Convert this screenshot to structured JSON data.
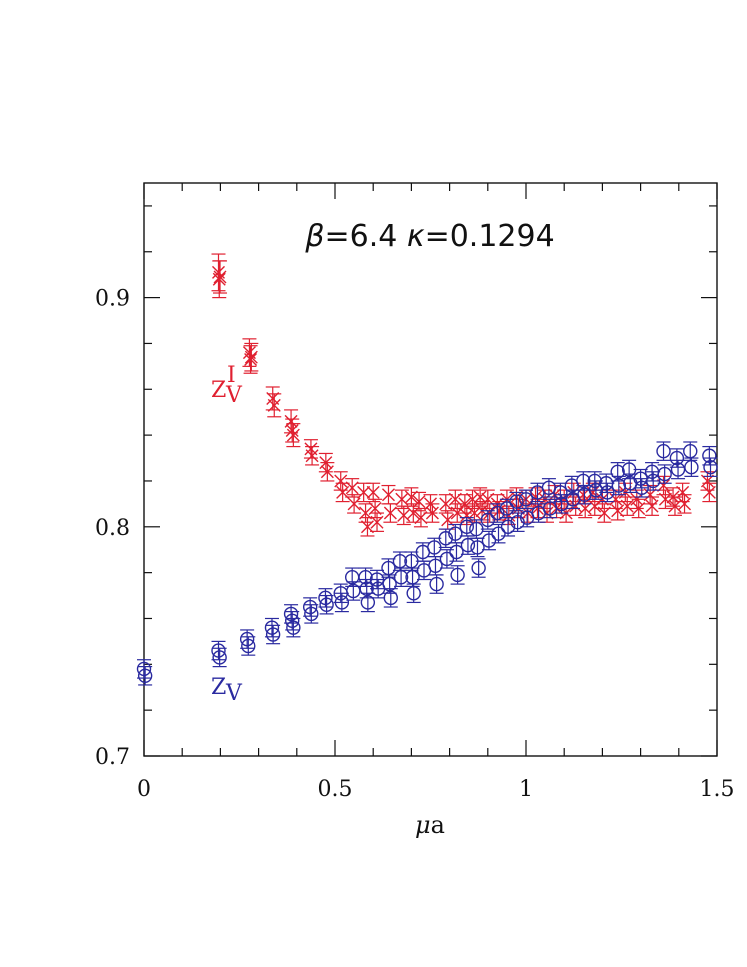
{
  "chart_data": {
    "type": "scatter",
    "title": "",
    "annotation_parts": [
      "β",
      "=6.4  ",
      "κ",
      "=0.1294"
    ],
    "xlabel_parts": [
      "μ",
      "a"
    ],
    "ylabel": "",
    "xlim": [
      0,
      1.5
    ],
    "ylim": [
      0.7,
      0.95
    ],
    "x_ticks": [
      0,
      0.5,
      1,
      1.5
    ],
    "x_tick_labels": [
      "0",
      "0.5",
      "1",
      "1.5"
    ],
    "y_ticks": [
      0.7,
      0.8,
      0.9
    ],
    "y_tick_labels": [
      "0.7",
      "0.8",
      "0.9"
    ],
    "grid": false,
    "series": [
      {
        "label_main": "Z",
        "label_sub": "V",
        "label_sup": "I",
        "color": "#e02030",
        "marker": "cross",
        "points": [
          [
            0.195,
            0.911,
            0.008
          ],
          [
            0.197,
            0.908,
            0.008
          ],
          [
            0.199,
            0.909,
            0.007
          ],
          [
            0.276,
            0.876,
            0.006
          ],
          [
            0.279,
            0.873,
            0.006
          ],
          [
            0.281,
            0.874,
            0.006
          ],
          [
            0.337,
            0.856,
            0.005
          ],
          [
            0.341,
            0.853,
            0.005
          ],
          [
            0.385,
            0.846,
            0.005
          ],
          [
            0.388,
            0.842,
            0.005
          ],
          [
            0.391,
            0.84,
            0.005
          ],
          [
            0.437,
            0.834,
            0.004
          ],
          [
            0.44,
            0.831,
            0.004
          ],
          [
            0.476,
            0.828,
            0.004
          ],
          [
            0.48,
            0.824,
            0.004
          ],
          [
            0.515,
            0.82,
            0.004
          ],
          [
            0.52,
            0.815,
            0.004
          ],
          [
            0.545,
            0.817,
            0.004
          ],
          [
            0.55,
            0.81,
            0.004
          ],
          [
            0.575,
            0.815,
            0.004
          ],
          [
            0.58,
            0.806,
            0.004
          ],
          [
            0.585,
            0.8,
            0.004
          ],
          [
            0.6,
            0.815,
            0.004
          ],
          [
            0.605,
            0.808,
            0.004
          ],
          [
            0.61,
            0.802,
            0.004
          ],
          [
            0.64,
            0.814,
            0.004
          ],
          [
            0.645,
            0.806,
            0.004
          ],
          [
            0.675,
            0.812,
            0.004
          ],
          [
            0.68,
            0.805,
            0.004
          ],
          [
            0.7,
            0.813,
            0.004
          ],
          [
            0.705,
            0.806,
            0.004
          ],
          [
            0.72,
            0.811,
            0.004
          ],
          [
            0.725,
            0.804,
            0.004
          ],
          [
            0.75,
            0.81,
            0.004
          ],
          [
            0.755,
            0.806,
            0.004
          ],
          [
            0.79,
            0.81,
            0.004
          ],
          [
            0.795,
            0.803,
            0.004
          ],
          [
            0.815,
            0.812,
            0.004
          ],
          [
            0.82,
            0.806,
            0.004
          ],
          [
            0.84,
            0.81,
            0.004
          ],
          [
            0.845,
            0.805,
            0.004
          ],
          [
            0.86,
            0.812,
            0.004
          ],
          [
            0.865,
            0.806,
            0.004
          ],
          [
            0.88,
            0.813,
            0.004
          ],
          [
            0.885,
            0.807,
            0.004
          ],
          [
            0.9,
            0.812,
            0.004
          ],
          [
            0.905,
            0.806,
            0.004
          ],
          [
            0.925,
            0.81,
            0.004
          ],
          [
            0.93,
            0.807,
            0.004
          ],
          [
            0.95,
            0.812,
            0.004
          ],
          [
            0.955,
            0.805,
            0.004
          ],
          [
            0.975,
            0.813,
            0.004
          ],
          [
            0.98,
            0.808,
            0.004
          ],
          [
            1.0,
            0.812,
            0.004
          ],
          [
            1.005,
            0.806,
            0.004
          ],
          [
            1.025,
            0.813,
            0.004
          ],
          [
            1.03,
            0.808,
            0.004
          ],
          [
            1.05,
            0.812,
            0.004
          ],
          [
            1.055,
            0.806,
            0.004
          ],
          [
            1.075,
            0.814,
            0.004
          ],
          [
            1.08,
            0.808,
            0.004
          ],
          [
            1.1,
            0.812,
            0.004
          ],
          [
            1.105,
            0.806,
            0.004
          ],
          [
            1.125,
            0.815,
            0.004
          ],
          [
            1.13,
            0.809,
            0.004
          ],
          [
            1.15,
            0.814,
            0.004
          ],
          [
            1.155,
            0.808,
            0.004
          ],
          [
            1.175,
            0.815,
            0.004
          ],
          [
            1.18,
            0.809,
            0.004
          ],
          [
            1.2,
            0.812,
            0.004
          ],
          [
            1.205,
            0.806,
            0.004
          ],
          [
            1.235,
            0.812,
            0.004
          ],
          [
            1.24,
            0.807,
            0.004
          ],
          [
            1.26,
            0.815,
            0.004
          ],
          [
            1.265,
            0.809,
            0.004
          ],
          [
            1.29,
            0.812,
            0.004
          ],
          [
            1.295,
            0.808,
            0.004
          ],
          [
            1.325,
            0.814,
            0.004
          ],
          [
            1.33,
            0.809,
            0.004
          ],
          [
            1.36,
            0.818,
            0.004
          ],
          [
            1.365,
            0.812,
            0.004
          ],
          [
            1.385,
            0.813,
            0.004
          ],
          [
            1.39,
            0.809,
            0.004
          ],
          [
            1.41,
            0.815,
            0.004
          ],
          [
            1.415,
            0.81,
            0.004
          ],
          [
            1.475,
            0.82,
            0.004
          ],
          [
            1.48,
            0.815,
            0.004
          ]
        ]
      },
      {
        "label_main": "Z",
        "label_sub": "V",
        "label_sup": "",
        "color": "#2a2aa0",
        "marker": "circle",
        "points": [
          [
            0.0,
            0.738,
            0.004
          ],
          [
            0.003,
            0.735,
            0.004
          ],
          [
            0.195,
            0.746,
            0.004
          ],
          [
            0.198,
            0.743,
            0.004
          ],
          [
            0.27,
            0.751,
            0.004
          ],
          [
            0.273,
            0.748,
            0.004
          ],
          [
            0.335,
            0.756,
            0.004
          ],
          [
            0.338,
            0.753,
            0.004
          ],
          [
            0.385,
            0.762,
            0.004
          ],
          [
            0.388,
            0.759,
            0.004
          ],
          [
            0.391,
            0.756,
            0.004
          ],
          [
            0.435,
            0.765,
            0.004
          ],
          [
            0.438,
            0.762,
            0.004
          ],
          [
            0.475,
            0.769,
            0.004
          ],
          [
            0.478,
            0.766,
            0.004
          ],
          [
            0.515,
            0.771,
            0.004
          ],
          [
            0.518,
            0.767,
            0.004
          ],
          [
            0.545,
            0.778,
            0.004
          ],
          [
            0.548,
            0.772,
            0.004
          ],
          [
            0.58,
            0.778,
            0.004
          ],
          [
            0.583,
            0.773,
            0.004
          ],
          [
            0.586,
            0.767,
            0.004
          ],
          [
            0.61,
            0.777,
            0.004
          ],
          [
            0.613,
            0.773,
            0.004
          ],
          [
            0.64,
            0.782,
            0.004
          ],
          [
            0.643,
            0.775,
            0.004
          ],
          [
            0.646,
            0.769,
            0.004
          ],
          [
            0.67,
            0.785,
            0.004
          ],
          [
            0.673,
            0.778,
            0.004
          ],
          [
            0.7,
            0.785,
            0.004
          ],
          [
            0.703,
            0.778,
            0.004
          ],
          [
            0.706,
            0.771,
            0.004
          ],
          [
            0.73,
            0.789,
            0.004
          ],
          [
            0.733,
            0.781,
            0.004
          ],
          [
            0.76,
            0.791,
            0.004
          ],
          [
            0.763,
            0.783,
            0.004
          ],
          [
            0.766,
            0.775,
            0.004
          ],
          [
            0.79,
            0.795,
            0.004
          ],
          [
            0.793,
            0.786,
            0.004
          ],
          [
            0.815,
            0.797,
            0.004
          ],
          [
            0.818,
            0.789,
            0.004
          ],
          [
            0.821,
            0.779,
            0.004
          ],
          [
            0.845,
            0.8,
            0.004
          ],
          [
            0.848,
            0.792,
            0.004
          ],
          [
            0.87,
            0.799,
            0.004
          ],
          [
            0.873,
            0.791,
            0.004
          ],
          [
            0.876,
            0.782,
            0.004
          ],
          [
            0.9,
            0.803,
            0.004
          ],
          [
            0.903,
            0.794,
            0.004
          ],
          [
            0.925,
            0.806,
            0.004
          ],
          [
            0.928,
            0.797,
            0.004
          ],
          [
            0.95,
            0.808,
            0.004
          ],
          [
            0.953,
            0.8,
            0.004
          ],
          [
            0.975,
            0.811,
            0.004
          ],
          [
            0.978,
            0.802,
            0.004
          ],
          [
            1.0,
            0.812,
            0.004
          ],
          [
            1.003,
            0.804,
            0.004
          ],
          [
            1.03,
            0.815,
            0.004
          ],
          [
            1.033,
            0.806,
            0.004
          ],
          [
            1.06,
            0.817,
            0.004
          ],
          [
            1.063,
            0.808,
            0.004
          ],
          [
            1.09,
            0.815,
            0.004
          ],
          [
            1.093,
            0.81,
            0.004
          ],
          [
            1.12,
            0.818,
            0.004
          ],
          [
            1.123,
            0.812,
            0.004
          ],
          [
            1.15,
            0.82,
            0.004
          ],
          [
            1.153,
            0.814,
            0.004
          ],
          [
            1.18,
            0.82,
            0.004
          ],
          [
            1.183,
            0.816,
            0.004
          ],
          [
            1.21,
            0.819,
            0.004
          ],
          [
            1.213,
            0.815,
            0.004
          ],
          [
            1.24,
            0.824,
            0.004
          ],
          [
            1.243,
            0.818,
            0.004
          ],
          [
            1.27,
            0.825,
            0.004
          ],
          [
            1.273,
            0.819,
            0.004
          ],
          [
            1.3,
            0.821,
            0.004
          ],
          [
            1.303,
            0.817,
            0.004
          ],
          [
            1.33,
            0.824,
            0.004
          ],
          [
            1.333,
            0.82,
            0.004
          ],
          [
            1.36,
            0.833,
            0.004
          ],
          [
            1.363,
            0.823,
            0.004
          ],
          [
            1.395,
            0.83,
            0.004
          ],
          [
            1.398,
            0.825,
            0.004
          ],
          [
            1.43,
            0.833,
            0.004
          ],
          [
            1.433,
            0.826,
            0.004
          ],
          [
            1.48,
            0.831,
            0.004
          ],
          [
            1.483,
            0.826,
            0.004
          ]
        ]
      }
    ]
  }
}
